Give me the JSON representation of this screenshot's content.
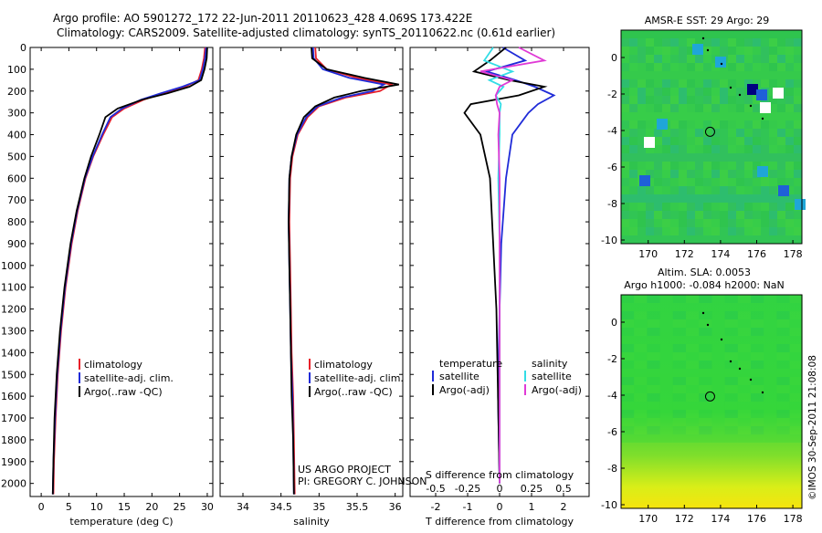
{
  "title": {
    "line1": "Argo profile: AO 5901272_172 22-Jun-2011 20110623_428 4.069S 173.422E",
    "line2": "Climatology: CARS2009. Satellite-adjusted climatology: synTS_20110622.nc (0.61d earlier)"
  },
  "credit": {
    "line1": "US ARGO PROJECT",
    "line2": "PI: GREGORY C. JOHNSON"
  },
  "stamp": "©IMOS 30-Sep-2011 21:08:08",
  "colors": {
    "climatology": "#e8202a",
    "satellite": "#1f2bd8",
    "argo": "#000000",
    "sal_satellite": "#33dde6",
    "sal_argo": "#e03ad6"
  },
  "chart_data": [
    {
      "name": "temperature",
      "type": "line",
      "xlabel": "temperature (deg C)",
      "ylabel": "",
      "xlim": [
        -2,
        31
      ],
      "ylim": [
        2060,
        0
      ],
      "xticks": [
        0,
        5,
        10,
        15,
        20,
        25,
        30
      ],
      "yticks": [
        0,
        100,
        200,
        300,
        400,
        500,
        600,
        700,
        800,
        900,
        1000,
        1100,
        1200,
        1300,
        1400,
        1500,
        1600,
        1700,
        1800,
        1900,
        2000
      ],
      "legend": [
        "climatology",
        "satellite-adj. clim.",
        "Argo(..raw -QC)"
      ],
      "series": [
        {
          "name": "climatology",
          "color": "#e8202a",
          "x": [
            29.6,
            29.4,
            29.0,
            28.4,
            26.0,
            22.0,
            18.5,
            15.0,
            12.8,
            11.2,
            9.4,
            8.0,
            6.6,
            5.5,
            4.4,
            3.6,
            3.0,
            2.6,
            2.3,
            2.2
          ],
          "y": [
            0,
            50,
            100,
            150,
            180,
            210,
            240,
            280,
            320,
            400,
            500,
            600,
            750,
            900,
            1100,
            1300,
            1500,
            1700,
            1900,
            2050
          ]
        },
        {
          "name": "satellite-adj. clim.",
          "color": "#1f2bd8",
          "x": [
            29.8,
            29.6,
            29.2,
            28.6,
            25.5,
            21.6,
            18.0,
            14.6,
            12.5,
            11.0,
            9.3,
            7.9,
            6.5,
            5.4,
            4.3,
            3.5,
            2.9,
            2.5,
            2.2,
            2.1
          ],
          "y": [
            0,
            50,
            100,
            150,
            180,
            210,
            240,
            280,
            320,
            400,
            500,
            600,
            750,
            900,
            1100,
            1300,
            1500,
            1700,
            1900,
            2050
          ]
        },
        {
          "name": "Argo(..raw -QC)",
          "color": "#000000",
          "x": [
            30.0,
            29.9,
            29.5,
            28.9,
            26.8,
            22.8,
            18.2,
            13.8,
            11.6,
            10.5,
            9.0,
            7.8,
            6.4,
            5.3,
            4.2,
            3.4,
            2.8,
            2.4,
            2.2,
            2.1
          ],
          "y": [
            0,
            50,
            100,
            150,
            180,
            210,
            240,
            280,
            320,
            400,
            500,
            600,
            750,
            900,
            1100,
            1300,
            1500,
            1700,
            1900,
            2050
          ]
        }
      ]
    },
    {
      "name": "salinity",
      "type": "line",
      "xlabel": "salinity",
      "ylabel": "",
      "xlim": [
        33.7,
        36.1
      ],
      "ylim": [
        2060,
        0
      ],
      "xticks": [
        34,
        34.5,
        35,
        35.5,
        36
      ],
      "xticklabels": [
        "34",
        "34.5",
        "35",
        "35.5",
        "36"
      ],
      "legend": [
        "climatology",
        "satellite-adj. clim.",
        "Argo(..raw -QC)"
      ],
      "series": [
        {
          "name": "climatology",
          "color": "#e8202a",
          "x": [
            34.95,
            34.96,
            35.1,
            35.5,
            35.95,
            35.8,
            35.35,
            35.0,
            34.85,
            34.72,
            34.65,
            34.62,
            34.61,
            34.62,
            34.63,
            34.64,
            34.66,
            34.67,
            34.68
          ],
          "y": [
            0,
            50,
            100,
            140,
            170,
            200,
            230,
            270,
            320,
            400,
            500,
            600,
            800,
            1000,
            1200,
            1400,
            1600,
            1800,
            2050
          ]
        },
        {
          "name": "satellite-adj. clim.",
          "color": "#1f2bd8",
          "x": [
            34.92,
            34.93,
            35.05,
            35.4,
            35.85,
            35.7,
            35.3,
            34.98,
            34.83,
            34.71,
            34.64,
            34.61,
            34.6,
            34.61,
            34.62,
            34.63,
            34.65,
            34.66,
            34.67
          ],
          "y": [
            0,
            50,
            100,
            140,
            170,
            200,
            230,
            270,
            320,
            400,
            500,
            600,
            800,
            1000,
            1200,
            1400,
            1600,
            1800,
            2050
          ]
        },
        {
          "name": "Argo(..raw -QC)",
          "color": "#000000",
          "x": [
            34.9,
            34.91,
            35.1,
            35.6,
            36.05,
            35.55,
            35.2,
            34.95,
            34.8,
            34.7,
            34.64,
            34.61,
            34.6,
            34.61,
            34.62,
            34.63,
            34.64,
            34.66,
            34.67
          ],
          "y": [
            0,
            50,
            100,
            140,
            170,
            200,
            230,
            270,
            320,
            400,
            500,
            600,
            800,
            1000,
            1200,
            1400,
            1600,
            1800,
            2050
          ]
        }
      ]
    },
    {
      "name": "difference",
      "type": "line",
      "xlabel_top": "S difference from climatology",
      "xlabel": "T difference from climatology",
      "xlim": [
        -2.8,
        2.8
      ],
      "ylim": [
        2060,
        0
      ],
      "xticks": [
        -2,
        -1,
        0,
        1,
        2
      ],
      "xticks_s": [
        -0.5,
        -0.25,
        0,
        0.25,
        0.5
      ],
      "xticklabels_s": [
        "-0.5",
        "-0.25",
        "0",
        "0.25",
        "0.5"
      ],
      "legend_temperature_header": "temperature",
      "legend_salinity_header": "salinity",
      "legend": [
        "satellite",
        "Argo(-adj)",
        "satellite",
        "Argo(-adj)"
      ],
      "series": [
        {
          "name": "T satellite",
          "color": "#1f2bd8",
          "x": [
            0.1,
            0.8,
            -0.4,
            0.5,
            1.1,
            1.7,
            1.2,
            0.9,
            0.4,
            0.2,
            0.05,
            0.0,
            -0.05,
            0.0
          ],
          "y": [
            0,
            60,
            110,
            150,
            180,
            220,
            260,
            300,
            400,
            600,
            900,
            1200,
            1600,
            2000
          ]
        },
        {
          "name": "T Argo(-adj)",
          "color": "#000000",
          "x": [
            0.2,
            -0.3,
            -0.8,
            0.3,
            1.4,
            0.6,
            -0.9,
            -1.1,
            -0.6,
            -0.3,
            -0.2,
            -0.1,
            -0.05,
            0.0
          ],
          "y": [
            0,
            60,
            110,
            150,
            180,
            220,
            260,
            300,
            400,
            600,
            900,
            1200,
            1600,
            2000
          ]
        },
        {
          "name": "S satellite",
          "color": "#33dde6",
          "x": [
            -0.05,
            -0.12,
            0.1,
            -0.08,
            0.03,
            -0.03,
            0.01,
            0.0,
            0.0,
            -0.01,
            0.0,
            0.0,
            0.0,
            0.0
          ],
          "y": [
            0,
            60,
            110,
            150,
            180,
            220,
            260,
            300,
            400,
            600,
            900,
            1200,
            1600,
            2000
          ]
        },
        {
          "name": "S Argo(-adj)",
          "color": "#e03ad6",
          "x": [
            0.15,
            0.35,
            -0.15,
            0.1,
            0.0,
            -0.03,
            -0.02,
            0.0,
            -0.01,
            0.0,
            0.0,
            0.0,
            0.0,
            0.0
          ],
          "y": [
            0,
            60,
            110,
            150,
            180,
            220,
            260,
            300,
            400,
            600,
            900,
            1200,
            1600,
            2000
          ]
        }
      ]
    },
    {
      "name": "sst_map",
      "type": "heatmap",
      "title": "AMSR-E SST: 29 Argo: 29",
      "xlim": [
        168.5,
        178.5
      ],
      "ylim": [
        -10.2,
        1.5
      ],
      "xticks": [
        170,
        172,
        174,
        176,
        178
      ],
      "yticks": [
        0,
        -2,
        -4,
        -6,
        -8,
        -10
      ],
      "marker": {
        "lon": 173.422,
        "lat": -4.069
      }
    },
    {
      "name": "sla_map",
      "type": "heatmap",
      "title_line1": "Altim. SLA: 0.0053",
      "title_line2": "Argo h1000: -0.084 h2000: NaN",
      "xlim": [
        168.5,
        178.5
      ],
      "ylim": [
        -10.2,
        1.5
      ],
      "xticks": [
        170,
        172,
        174,
        176,
        178
      ],
      "yticks": [
        0,
        -2,
        -4,
        -6,
        -8,
        -10
      ],
      "marker": {
        "lon": 173.422,
        "lat": -4.069
      }
    }
  ]
}
